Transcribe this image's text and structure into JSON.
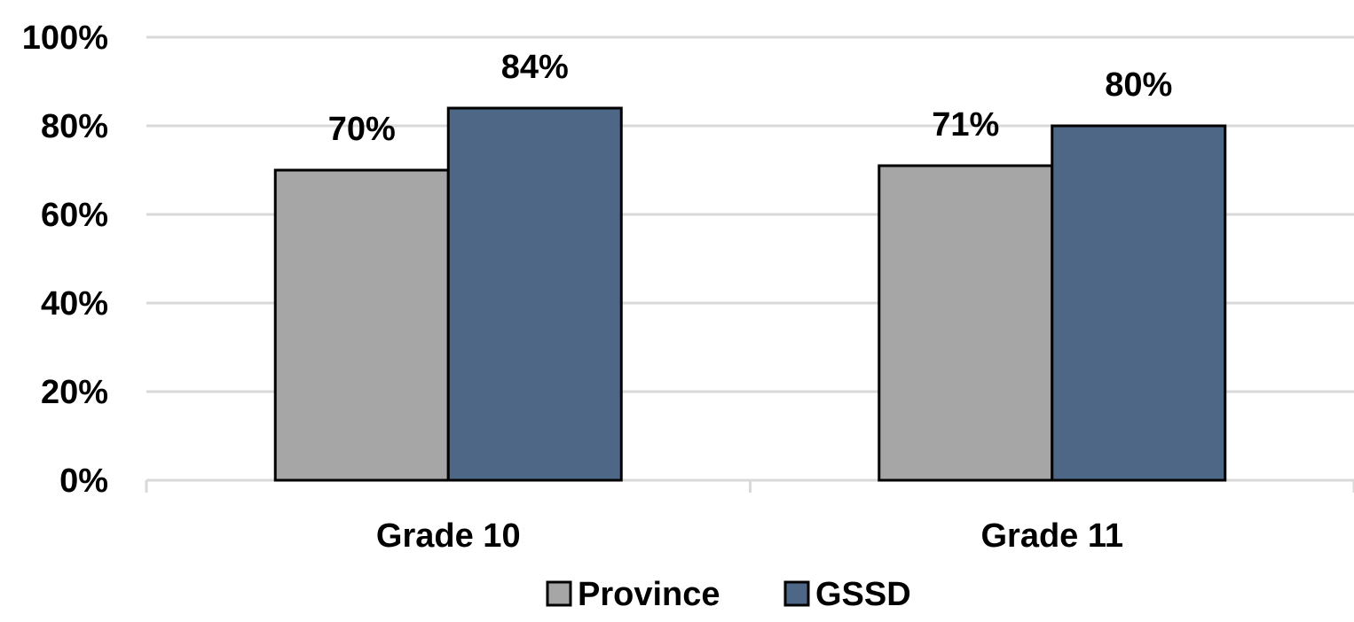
{
  "chart_data": {
    "type": "bar",
    "categories": [
      "Grade 10",
      "Grade 11"
    ],
    "series": [
      {
        "name": "Province",
        "values": [
          70,
          71
        ],
        "labels": [
          "70%",
          "71%"
        ],
        "color": "#a6a6a6"
      },
      {
        "name": "GSSD",
        "values": [
          84,
          80
        ],
        "labels": [
          "84%",
          "80%"
        ],
        "color": "#4e6787"
      }
    ],
    "ylim": [
      0,
      100
    ],
    "yticks": [
      0,
      20,
      40,
      60,
      80,
      100
    ],
    "ytick_labels": [
      "0%",
      "20%",
      "40%",
      "60%",
      "80%",
      "100%"
    ],
    "grid": true,
    "legend_position": "bottom",
    "title": "",
    "xlabel": "",
    "ylabel": ""
  }
}
